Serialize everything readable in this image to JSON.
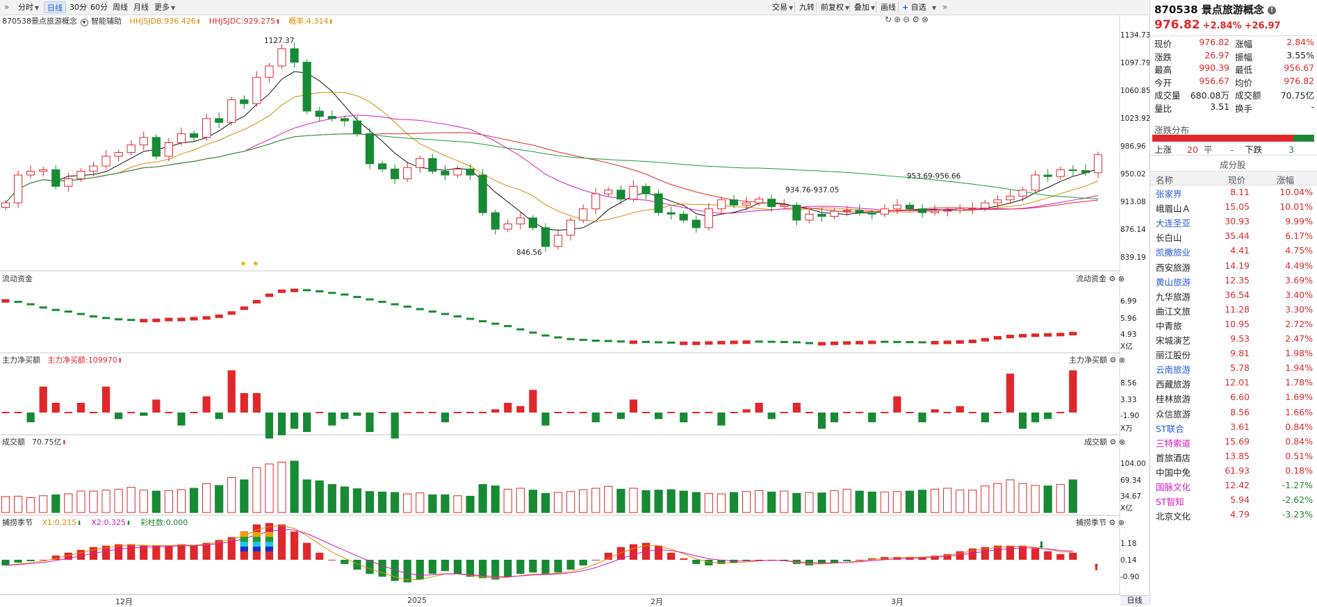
{
  "toolbar": {
    "items": [
      {
        "label": "分时",
        "caret": true
      },
      {
        "label": "日线",
        "active": true
      },
      {
        "label": "30分"
      },
      {
        "label": "60分"
      },
      {
        "label": "周线"
      },
      {
        "label": "月线"
      },
      {
        "label": "更多",
        "caret": true
      }
    ],
    "right": [
      {
        "label": "交易",
        "caret": true
      },
      {
        "label": "九转"
      },
      {
        "label": "前复权",
        "caret": true
      },
      {
        "label": "叠加",
        "caret": true
      },
      {
        "label": "画线"
      },
      {
        "label": "自选",
        "plus": true
      }
    ]
  },
  "main_chart": {
    "code": "870538",
    "name": "景点旅游概念",
    "assist": "智能辅助",
    "indicators": [
      {
        "label": "HHJSJDB:936.426",
        "color": "#e08a00"
      },
      {
        "label": "HHJSJDC:929.275",
        "color": "#e0282c"
      },
      {
        "label": "概率:4.314",
        "color": "#e08a00"
      }
    ],
    "y_ticks": [
      "1134.73",
      "1097.79",
      "1060.85",
      "1023.92",
      "986.96",
      "950.02",
      "913.08",
      "876.14",
      "839.19"
    ],
    "high_label": "1127.37",
    "low_label": "846.56",
    "range_label": "934.76-937.05",
    "last_label": "953.69-956.66"
  },
  "panel_flow": {
    "title": "流动资金",
    "right_title": "流动资金",
    "y_ticks": [
      "6.99",
      "5.96",
      "4.93"
    ],
    "unit": "X亿"
  },
  "panel_netbuy": {
    "title": "主力净买额",
    "indicator": "主力净买额:109970",
    "right_title": "主力净买额",
    "y_ticks": [
      "8.56",
      "3.33",
      "-1.90"
    ],
    "unit": "X万"
  },
  "panel_volume": {
    "title": "成交额",
    "indicator": "70.75亿",
    "right_title": "成交额",
    "y_ticks": [
      "104.00",
      "69.34",
      "34.67"
    ],
    "unit": "X亿"
  },
  "panel_season": {
    "title": "捕捞季节",
    "indicators": [
      {
        "label": "X1:0.215",
        "color": "#e08a00"
      },
      {
        "label": "X2:0.325",
        "color": "#d818c0"
      },
      {
        "label": "彩柱数:0.000",
        "color": "#1b8a35"
      }
    ],
    "right_title": "捕捞季节",
    "y_ticks": [
      "1.18",
      "0.14",
      "-0.90"
    ]
  },
  "x_axis": [
    {
      "label": "12月",
      "x": 146
    },
    {
      "label": "2025",
      "x": 494
    },
    {
      "label": "2月",
      "x": 781
    },
    {
      "label": "3月",
      "x": 1068
    }
  ],
  "period_tab": "日线",
  "quote": {
    "code": "870538",
    "name": "景点旅游概念",
    "price": "976.82",
    "change_pct": "+2.84%",
    "change": "+26.97",
    "rows": [
      {
        "l1": "现价",
        "v1": "976.82",
        "c1": "red",
        "l2": "涨幅",
        "v2": "2.84%",
        "c2": "red"
      },
      {
        "l1": "涨跌",
        "v1": "26.97",
        "c1": "red",
        "l2": "振幅",
        "v2": "3.55%",
        "c2": "black"
      },
      {
        "l1": "最高",
        "v1": "990.39",
        "c1": "red",
        "l2": "最低",
        "v2": "956.67",
        "c2": "red"
      },
      {
        "l1": "今开",
        "v1": "956.67",
        "c1": "red",
        "l2": "均价",
        "v2": "976.82",
        "c2": "red"
      },
      {
        "l1": "成交量",
        "v1": "680.08万",
        "c1": "black",
        "l2": "成交额",
        "v2": "70.75亿",
        "c2": "black"
      },
      {
        "l1": "量比",
        "v1": "3.51",
        "c1": "black",
        "l2": "换手",
        "v2": "-",
        "c2": "black"
      }
    ],
    "dist_title": "涨跌分布",
    "up_label": "上涨",
    "up_count": "20",
    "flat_label": "平",
    "flat_count": "-",
    "down_label": "下跌",
    "down_count": "3",
    "up_ratio": 0.87,
    "constituents_title": "成分股",
    "headers": [
      "名称",
      "现价",
      "涨幅"
    ],
    "stocks": [
      {
        "name": "张家界",
        "price": "8.11",
        "pct": "10.04%",
        "nc": "blu",
        "pc": "red"
      },
      {
        "name": "峨眉山Ａ",
        "price": "15.05",
        "pct": "10.01%",
        "nc": "black",
        "pc": "red"
      },
      {
        "name": "大连圣亚",
        "price": "30.93",
        "pct": "9.99%",
        "nc": "blu",
        "pc": "red"
      },
      {
        "name": "长白山",
        "price": "35.44",
        "pct": "6.17%",
        "nc": "black",
        "pc": "red"
      },
      {
        "name": "凯撒旅业",
        "price": "4.41",
        "pct": "4.75%",
        "nc": "blu",
        "pc": "red"
      },
      {
        "name": "西安旅游",
        "price": "14.19",
        "pct": "4.49%",
        "nc": "black",
        "pc": "red"
      },
      {
        "name": "黄山旅游",
        "price": "12.35",
        "pct": "3.69%",
        "nc": "blu",
        "pc": "red"
      },
      {
        "name": "九华旅游",
        "price": "36.54",
        "pct": "3.40%",
        "nc": "black",
        "pc": "red"
      },
      {
        "name": "曲江文旅",
        "price": "11.28",
        "pct": "3.30%",
        "nc": "black",
        "pc": "red"
      },
      {
        "name": "中青旅",
        "price": "10.95",
        "pct": "2.72%",
        "nc": "black",
        "pc": "red"
      },
      {
        "name": "宋城演艺",
        "price": "9.53",
        "pct": "2.47%",
        "nc": "black",
        "pc": "red"
      },
      {
        "name": "丽江股份",
        "price": "9.81",
        "pct": "1.98%",
        "nc": "black",
        "pc": "red"
      },
      {
        "name": "云南旅游",
        "price": "5.78",
        "pct": "1.94%",
        "nc": "blu",
        "pc": "red"
      },
      {
        "name": "西藏旅游",
        "price": "12.01",
        "pct": "1.78%",
        "nc": "black",
        "pc": "red"
      },
      {
        "name": "桂林旅游",
        "price": "6.60",
        "pct": "1.69%",
        "nc": "black",
        "pc": "red"
      },
      {
        "name": "众信旅游",
        "price": "8.56",
        "pct": "1.66%",
        "nc": "black",
        "pc": "red"
      },
      {
        "name": "ST联合",
        "price": "3.61",
        "pct": "0.84%",
        "nc": "blu",
        "pc": "red"
      },
      {
        "name": "三特索道",
        "price": "15.69",
        "pct": "0.84%",
        "nc": "mag",
        "pc": "red"
      },
      {
        "name": "首旅酒店",
        "price": "13.85",
        "pct": "0.51%",
        "nc": "black",
        "pc": "red"
      },
      {
        "name": "中国中免",
        "price": "61.93",
        "pct": "0.18%",
        "nc": "black",
        "pc": "red"
      },
      {
        "name": "国脉文化",
        "price": "12.42",
        "pct": "-1.27%",
        "nc": "mag",
        "pc": "grn"
      },
      {
        "name": "ST智知",
        "price": "5.94",
        "pct": "-2.62%",
        "nc": "mag",
        "pc": "grn"
      },
      {
        "name": "北京文化",
        "price": "4.79",
        "pct": "-3.23%",
        "nc": "black",
        "pc": "grn"
      }
    ]
  },
  "colors": {
    "up": "#e0282c",
    "down": "#178a33",
    "accent": "#1d5bd6"
  },
  "chart_data": {
    "type": "candlestick",
    "closes": [
      913,
      950,
      955,
      957,
      935,
      945,
      955,
      962,
      975,
      980,
      990,
      1000,
      975,
      993,
      1005,
      1000,
      1025,
      1020,
      1050,
      1045,
      1080,
      1095,
      1118,
      1100,
      1035,
      1028,
      1025,
      1022,
      1005,
      965,
      958,
      945,
      960,
      972,
      955,
      950,
      958,
      950,
      900,
      878,
      885,
      893,
      880,
      855,
      870,
      890,
      905,
      925,
      930,
      918,
      935,
      925,
      900,
      898,
      890,
      880,
      905,
      917,
      910,
      913,
      918,
      908,
      910,
      890,
      898,
      895,
      902,
      903,
      900,
      898,
      905,
      910,
      905,
      900,
      902,
      903,
      905,
      906,
      913,
      917,
      922,
      930,
      950,
      948,
      957,
      956,
      953,
      977
    ],
    "volume_x_yi": [
      34,
      35,
      32,
      36,
      38,
      40,
      46,
      46,
      48,
      50,
      54,
      48,
      46,
      47,
      49,
      52,
      62,
      58,
      75,
      70,
      96,
      104,
      108,
      110,
      70,
      68,
      60,
      55,
      51,
      45,
      44,
      43,
      40,
      42,
      38,
      38,
      36,
      35,
      60,
      57,
      50,
      52,
      48,
      41,
      43,
      45,
      49,
      52,
      56,
      50,
      52,
      47,
      48,
      49,
      46,
      43,
      41,
      40,
      43,
      45,
      47,
      44,
      46,
      41,
      43,
      42,
      47,
      50,
      46,
      44,
      44,
      45,
      46,
      48,
      50,
      52,
      48,
      48,
      57,
      62,
      70,
      62,
      58,
      57,
      60,
      70
    ],
    "netbuy_x_wan": [
      0,
      0,
      -3,
      8,
      3,
      0,
      3,
      0,
      8,
      -2,
      0,
      -1,
      4,
      0,
      -4,
      0,
      5,
      -2,
      13,
      6,
      6,
      -8,
      -7,
      -5,
      -6,
      0,
      -4,
      -2,
      -1,
      -6,
      0,
      -8,
      0,
      0,
      0,
      -3,
      0,
      0,
      0,
      1,
      3,
      2,
      7,
      -4,
      0,
      0,
      0,
      -3,
      0,
      -2,
      4,
      0,
      -2,
      0,
      -3,
      0,
      0,
      -4,
      0,
      1,
      3,
      -2,
      0,
      3,
      0,
      -5,
      -3,
      0,
      0,
      -3,
      0,
      5,
      0,
      -3,
      1,
      0,
      2,
      0,
      -3,
      0,
      12,
      -5,
      -3,
      -2,
      0,
      13
    ],
    "flow_x_yi": [
      7.0,
      6.9,
      6.75,
      6.55,
      6.4,
      6.3,
      6.15,
      6.0,
      5.9,
      5.82,
      5.78,
      5.78,
      5.8,
      5.85,
      5.85,
      5.9,
      5.95,
      6.05,
      6.25,
      6.55,
      6.95,
      7.35,
      7.6,
      7.65,
      7.62,
      7.55,
      7.45,
      7.35,
      7.2,
      7.05,
      6.9,
      6.75,
      6.6,
      6.45,
      6.3,
      6.15,
      6.0,
      5.85,
      5.7,
      5.55,
      5.4,
      5.2,
      5.0,
      4.82,
      4.7,
      4.6,
      4.55,
      4.5,
      4.48,
      4.45,
      4.45,
      4.42,
      4.4,
      4.38,
      4.38,
      4.38,
      4.4,
      4.42,
      4.44,
      4.45,
      4.44,
      4.43,
      4.42,
      4.4,
      4.35,
      4.35,
      4.38,
      4.4,
      4.42,
      4.44,
      4.43,
      4.42,
      4.41,
      4.4,
      4.42,
      4.44,
      4.46,
      4.5,
      4.6,
      4.72,
      4.8,
      4.85,
      4.88,
      4.9,
      4.92,
      4.98
    ],
    "season_x": [
      -0.4,
      -0.2,
      -0.1,
      0.0,
      0.3,
      0.5,
      0.7,
      0.9,
      1.0,
      1.1,
      1.1,
      1.0,
      1.0,
      1.0,
      1.1,
      1.0,
      1.2,
      1.4,
      1.6,
      2.0,
      2.5,
      2.6,
      2.5,
      2.0,
      1.2,
      0.5,
      0.0,
      -0.3,
      -0.7,
      -1.0,
      -1.2,
      -1.5,
      -1.6,
      -1.4,
      -1.0,
      -0.8,
      -1.0,
      -1.2,
      -1.3,
      -1.4,
      -1.2,
      -1.0,
      -0.9,
      -1.0,
      -0.9,
      -0.7,
      -0.4,
      0.0,
      0.5,
      0.9,
      1.1,
      1.2,
      1.0,
      0.5,
      0.1,
      -0.3,
      -0.4,
      -0.3,
      -0.2,
      -0.1,
      0.0,
      0.0,
      -0.1,
      -0.3,
      -0.4,
      -0.3,
      -0.2,
      -0.1,
      0.0,
      0.1,
      0.2,
      0.2,
      0.2,
      0.2,
      0.3,
      0.4,
      0.6,
      0.8,
      0.9,
      1.0,
      1.0,
      1.0,
      0.8,
      0.6,
      0.4,
      0.5
    ]
  }
}
